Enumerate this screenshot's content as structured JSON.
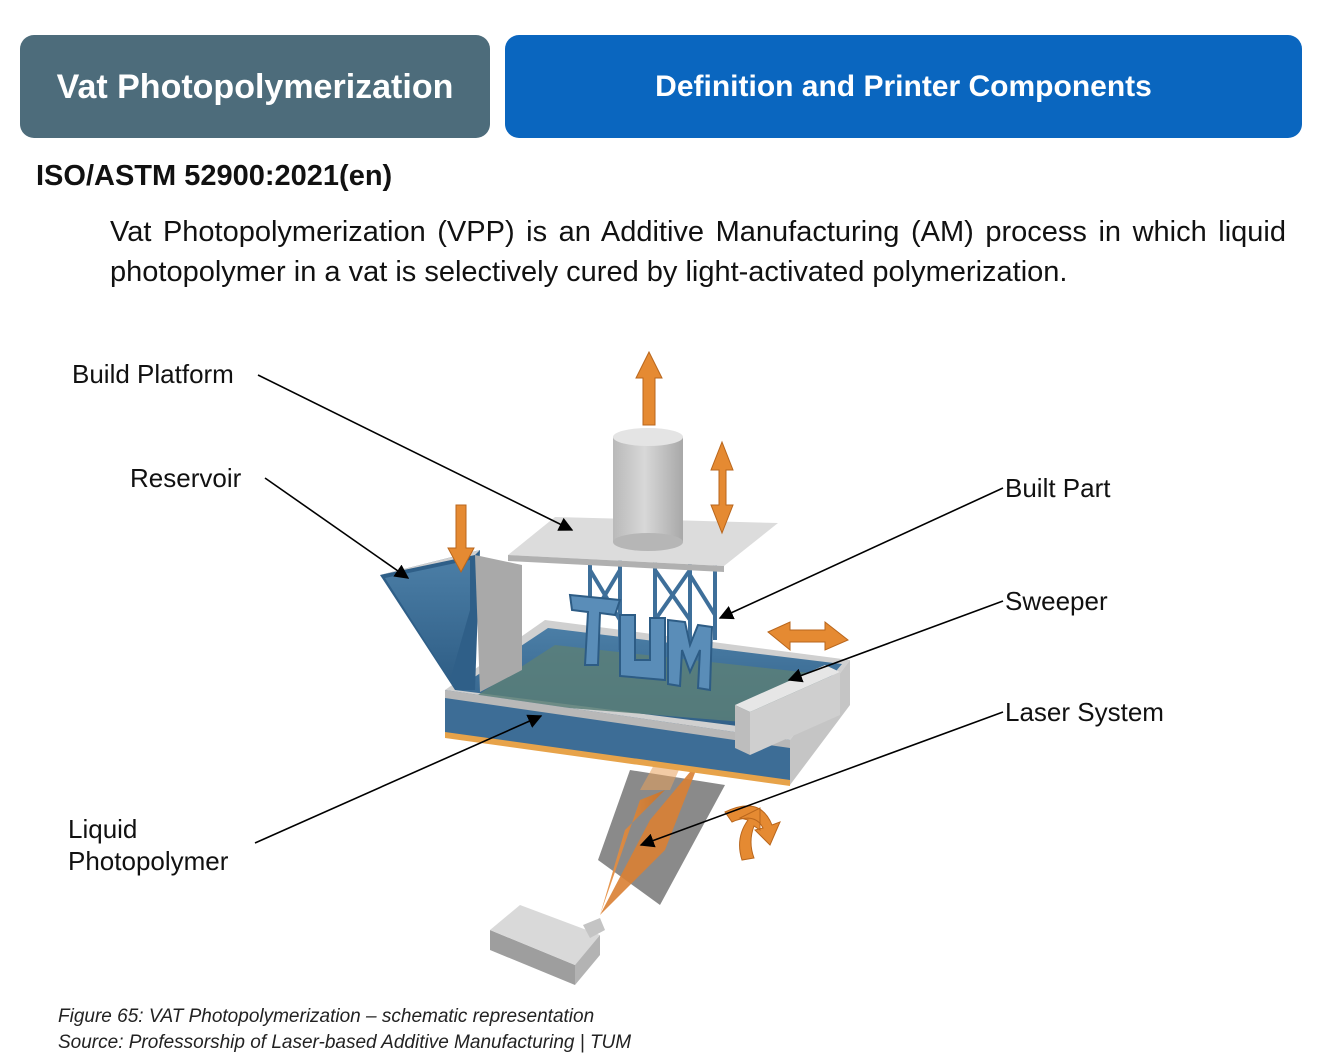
{
  "header": {
    "section_title": "Vat Photopolymerization",
    "topic_title": "Definition and Printer Components"
  },
  "standard": "ISO/ASTM 52900:2021(en)",
  "definition": "Vat Photopolymerization (VPP) is an Additive Manufacturing (AM) process in which liquid photopolymer in a vat is selectively cured by light-activated polymerization.",
  "diagram": {
    "labels": {
      "build_platform": "Build Platform",
      "reservoir": "Reservoir",
      "built_part": "Built Part",
      "sweeper": "Sweeper",
      "laser_system": "Laser System",
      "liquid_photopolymer": "Liquid Photopolymer"
    },
    "colors": {
      "resin": "#3f6f99",
      "resin_surface": "#5a7f76",
      "arrow": "#e58a32",
      "metal": "#cfcfcf",
      "laser": "#e08a38"
    }
  },
  "caption": {
    "figure": "Figure 65: VAT Photopolymerization – schematic representation",
    "source": "Source: Professorship of Laser-based Additive Manufacturing | TUM"
  }
}
